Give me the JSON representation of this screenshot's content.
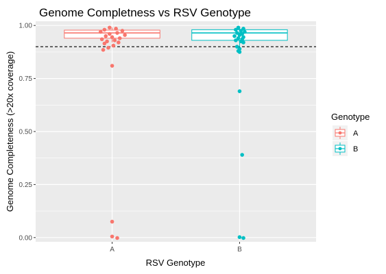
{
  "chart_data": {
    "type": "box",
    "title": "Genome Completness vs RSV Genotype",
    "xlabel": "RSV Genotype",
    "ylabel": "Genome Completeness (>20x coverage)",
    "categories": [
      "A",
      "B"
    ],
    "ylim": [
      -0.02,
      1.02
    ],
    "yticks": [
      0.0,
      0.25,
      0.5,
      0.75,
      1.0
    ],
    "ytick_labels": [
      "0.00",
      "0.25",
      "0.50",
      "0.75",
      "1.00"
    ],
    "grid": true,
    "reference_line": {
      "y": 0.9,
      "style": "dashed"
    },
    "legend": {
      "title": "Genotype",
      "placement": "right",
      "entries": [
        "A",
        "B"
      ]
    },
    "colors": {
      "A": "#F8766D",
      "B": "#00BFC4"
    },
    "series": [
      {
        "name": "A",
        "box": {
          "q1": 0.94,
          "median": 0.965,
          "q3": 0.978,
          "whisker_low": 0.92,
          "whisker_high": 0.99
        },
        "points": [
          [
            -0.02,
            0.99
          ],
          [
            0.03,
            0.985
          ],
          [
            -0.06,
            0.98
          ],
          [
            0.08,
            0.975
          ],
          [
            -0.09,
            0.97
          ],
          [
            0.04,
            0.965
          ],
          [
            -0.02,
            0.96
          ],
          [
            0.1,
            0.955
          ],
          [
            -0.05,
            0.95
          ],
          [
            0.0,
            0.945
          ],
          [
            0.06,
            0.94
          ],
          [
            -0.08,
            0.935
          ],
          [
            0.02,
            0.93
          ],
          [
            -0.04,
            0.925
          ],
          [
            0.05,
            0.92
          ],
          [
            -0.06,
            0.915
          ],
          [
            0.01,
            0.905
          ],
          [
            -0.03,
            0.895
          ],
          [
            -0.07,
            0.885
          ],
          [
            0.0,
            0.81
          ],
          [
            0.0,
            0.075
          ],
          [
            0.0,
            0.005
          ],
          [
            0.04,
            -0.002
          ]
        ]
      },
      {
        "name": "B",
        "box": {
          "q1": 0.93,
          "median": 0.965,
          "q3": 0.98,
          "whisker_low": 0.9,
          "whisker_high": 0.99
        },
        "points": [
          [
            -0.01,
            0.99
          ],
          [
            0.03,
            0.985
          ],
          [
            -0.03,
            0.98
          ],
          [
            0.01,
            0.975
          ],
          [
            0.04,
            0.97
          ],
          [
            -0.02,
            0.965
          ],
          [
            0.02,
            0.96
          ],
          [
            0.0,
            0.955
          ],
          [
            -0.04,
            0.95
          ],
          [
            0.03,
            0.945
          ],
          [
            -0.01,
            0.94
          ],
          [
            0.02,
            0.935
          ],
          [
            -0.03,
            0.93
          ],
          [
            0.01,
            0.925
          ],
          [
            0.03,
            0.92
          ],
          [
            -0.02,
            0.9
          ],
          [
            0.0,
            0.89
          ],
          [
            -0.01,
            0.88
          ],
          [
            0.0,
            0.875
          ],
          [
            0.0,
            0.69
          ],
          [
            0.02,
            0.39
          ],
          [
            0.0,
            0.002
          ],
          [
            0.03,
            -0.002
          ]
        ]
      }
    ]
  }
}
